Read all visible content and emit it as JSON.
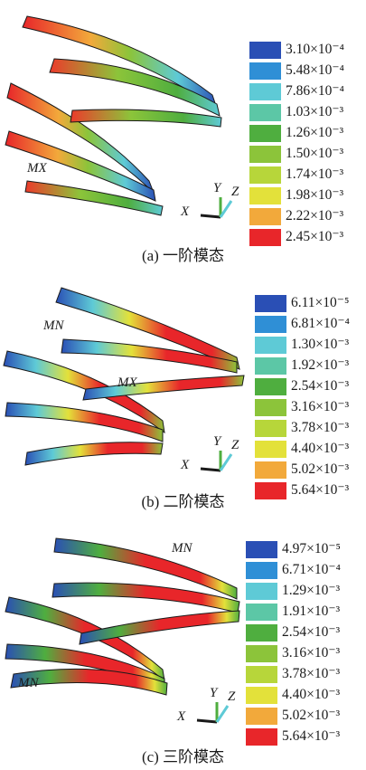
{
  "panels": [
    {
      "caption": "(a) 一阶模态",
      "annotations": [
        "MX"
      ],
      "legend": [
        "3.10×10⁻⁴",
        "5.48×10⁻⁴",
        "7.86×10⁻⁴",
        "1.03×10⁻³",
        "1.26×10⁻³",
        "1.50×10⁻³",
        "1.74×10⁻³",
        "1.98×10⁻³",
        "2.22×10⁻³",
        "2.45×10⁻³"
      ]
    },
    {
      "caption": "(b) 二阶模态",
      "annotations": [
        "MN",
        "MX"
      ],
      "legend": [
        "6.11×10⁻⁵",
        "6.81×10⁻⁴",
        "1.30×10⁻³",
        "1.92×10⁻³",
        "2.54×10⁻³",
        "3.16×10⁻³",
        "3.78×10⁻³",
        "4.40×10⁻³",
        "5.02×10⁻³",
        "5.64×10⁻³"
      ]
    },
    {
      "caption": "(c) 三阶模态",
      "annotations": [
        "MN",
        "MN"
      ],
      "legend": [
        "4.97×10⁻⁵",
        "6.71×10⁻⁴",
        "1.29×10⁻³",
        "1.91×10⁻³",
        "2.54×10⁻³",
        "3.16×10⁻³",
        "3.78×10⁻³",
        "4.40×10⁻³",
        "5.02×10⁻³",
        "5.64×10⁻³"
      ]
    }
  ],
  "axes_labels": {
    "x": "X",
    "y": "Y",
    "z": "Z"
  },
  "colors": {
    "scale": [
      "#2a4fb5",
      "#2f8fd6",
      "#5ecad6",
      "#5cc7a6",
      "#4fae3f",
      "#8cc43a",
      "#e3e13a",
      "#f2a93b",
      "#ec3a2b",
      "#e8262a"
    ],
    "deep_blue": "#2a4fb5",
    "red": "#e8262a"
  }
}
